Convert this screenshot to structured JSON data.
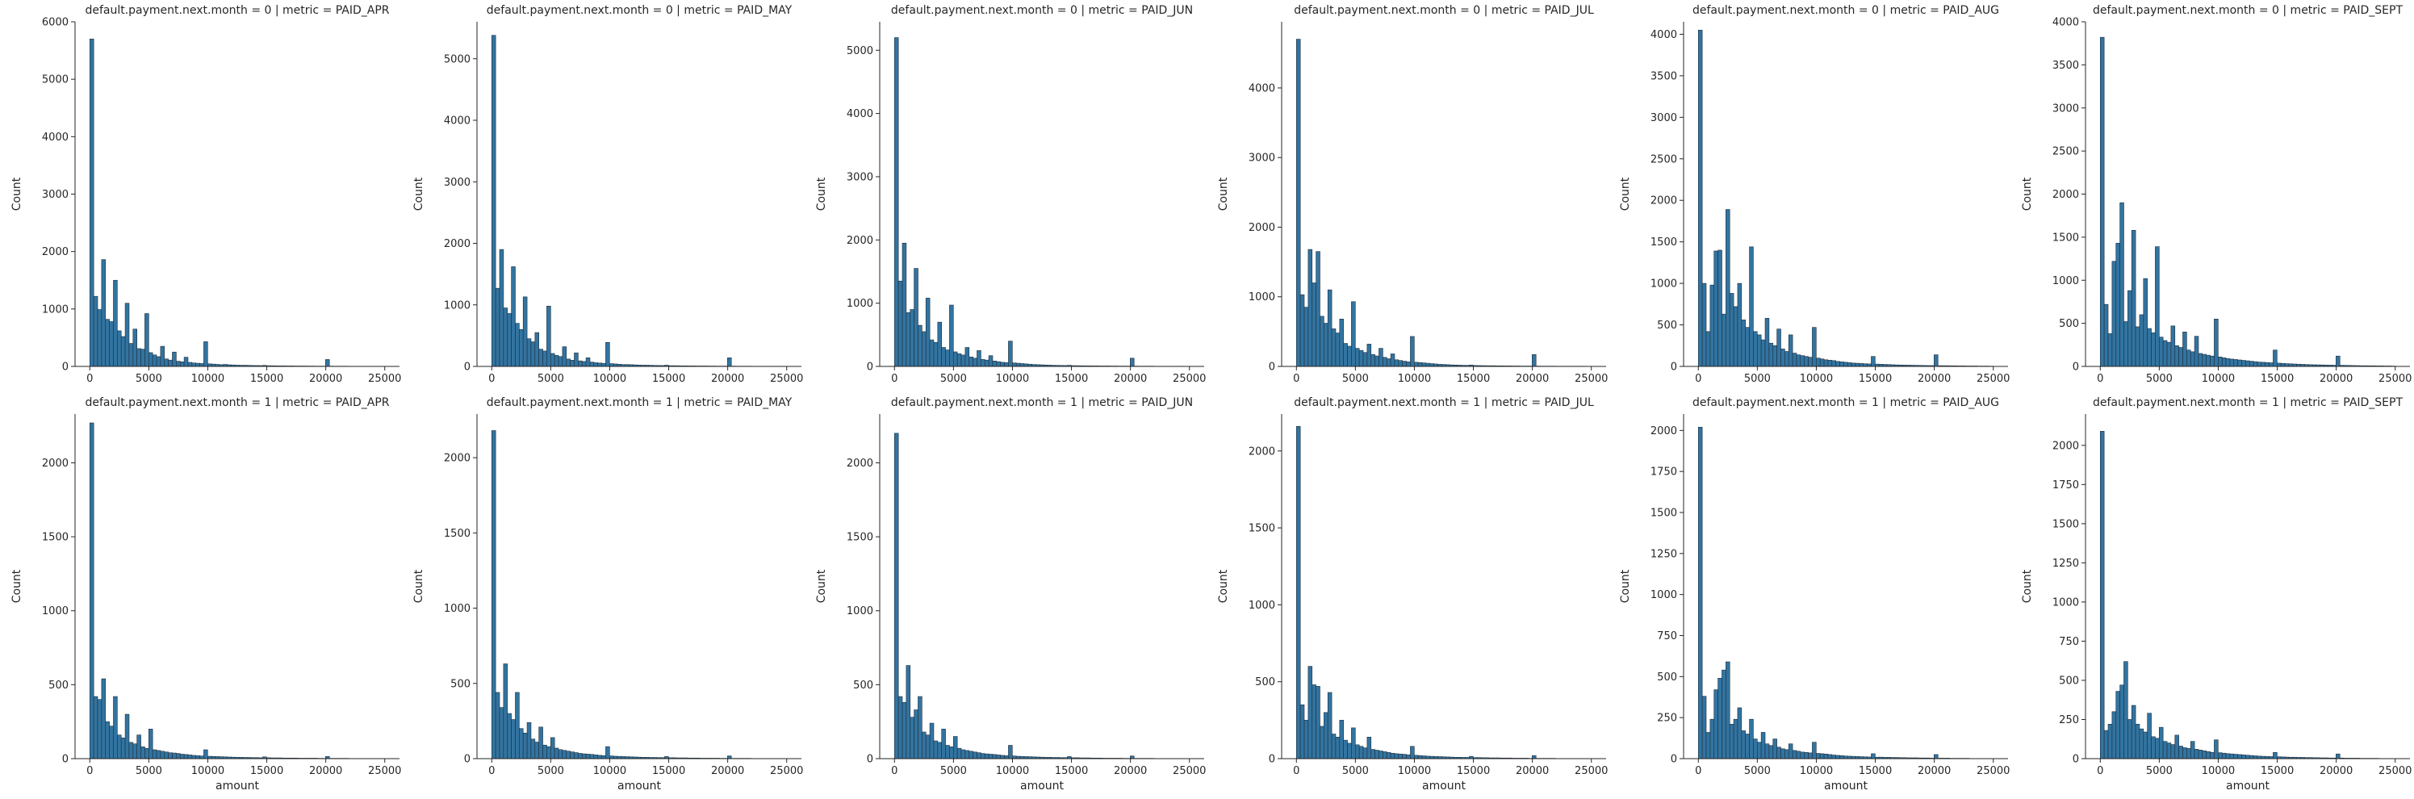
{
  "chart_data": {
    "type": "bar",
    "kind": "histogram facet grid",
    "bar_color": "#3274a1",
    "bar_edge_color": "#1f2d3a",
    "xlabel": "amount",
    "ylabel": "Count",
    "xlim": [
      -1250,
      26250
    ],
    "xticks": [
      0,
      5000,
      10000,
      15000,
      20000,
      25000
    ],
    "xtick_labels": [
      "0",
      "5000",
      "10000",
      "15000",
      "20000",
      "25000"
    ],
    "bin_width": 333,
    "panels": [
      {
        "title": "default.payment.next.month = 0 | metric = PAID_APR",
        "ylim": [
          0,
          6000
        ],
        "yticks": [
          0,
          1000,
          2000,
          3000,
          4000,
          5000,
          6000
        ],
        "counts": [
          5700,
          1220,
          990,
          1860,
          820,
          780,
          1500,
          620,
          520,
          1100,
          400,
          650,
          310,
          300,
          920,
          240,
          200,
          170,
          350,
          130,
          110,
          250,
          90,
          80,
          160,
          70,
          60,
          55,
          50,
          430,
          45,
          40,
          35,
          30,
          35,
          28,
          25,
          22,
          20,
          20,
          18,
          16,
          15,
          14,
          18,
          12,
          11,
          10,
          9,
          9,
          8,
          8,
          7,
          7,
          7,
          6,
          6,
          5,
          5,
          5,
          120,
          5,
          4,
          4,
          4,
          4,
          3,
          3,
          3,
          3,
          3,
          3,
          3,
          3,
          2
        ]
      },
      {
        "title": "default.payment.next.month = 0 | metric = PAID_MAY",
        "ylim": [
          0,
          5600
        ],
        "yticks": [
          0,
          1000,
          2000,
          3000,
          4000,
          5000
        ],
        "counts": [
          5380,
          1270,
          1900,
          950,
          860,
          1620,
          700,
          600,
          1130,
          450,
          400,
          550,
          280,
          250,
          980,
          210,
          180,
          160,
          320,
          120,
          100,
          220,
          90,
          80,
          140,
          70,
          60,
          55,
          50,
          390,
          45,
          40,
          35,
          30,
          30,
          28,
          25,
          22,
          20,
          20,
          18,
          16,
          15,
          14,
          20,
          12,
          11,
          10,
          9,
          9,
          8,
          8,
          7,
          7,
          7,
          6,
          6,
          5,
          5,
          5,
          140,
          5,
          4,
          4,
          4,
          4,
          3,
          3,
          3,
          3,
          3,
          3,
          3,
          3,
          2
        ]
      },
      {
        "title": "default.payment.next.month = 0 | metric = PAID_JUN",
        "ylim": [
          0,
          5450
        ],
        "yticks": [
          0,
          1000,
          2000,
          3000,
          4000,
          5000
        ],
        "counts": [
          5200,
          1350,
          1950,
          850,
          900,
          1550,
          650,
          550,
          1080,
          420,
          380,
          700,
          300,
          260,
          970,
          230,
          200,
          180,
          300,
          150,
          130,
          250,
          110,
          100,
          170,
          85,
          75,
          65,
          60,
          400,
          55,
          50,
          45,
          40,
          35,
          30,
          28,
          25,
          22,
          20,
          18,
          16,
          15,
          14,
          18,
          12,
          11,
          10,
          9,
          9,
          8,
          8,
          7,
          7,
          7,
          6,
          6,
          5,
          5,
          5,
          130,
          5,
          4,
          4,
          4,
          4,
          3,
          3,
          3,
          3,
          3,
          3,
          3,
          3,
          2
        ]
      },
      {
        "title": "default.payment.next.month = 0 | metric = PAID_JUL",
        "ylim": [
          0,
          4950
        ],
        "yticks": [
          0,
          1000,
          2000,
          3000,
          4000
        ],
        "counts": [
          4700,
          1030,
          850,
          1680,
          1200,
          1650,
          720,
          620,
          1100,
          540,
          480,
          680,
          330,
          290,
          930,
          260,
          230,
          200,
          320,
          170,
          150,
          260,
          130,
          110,
          180,
          95,
          85,
          75,
          65,
          430,
          60,
          55,
          50,
          45,
          40,
          35,
          30,
          28,
          25,
          22,
          20,
          18,
          16,
          15,
          20,
          13,
          12,
          11,
          10,
          9,
          9,
          8,
          8,
          7,
          7,
          6,
          6,
          5,
          5,
          5,
          170,
          5,
          4,
          4,
          4,
          4,
          3,
          3,
          3,
          3,
          3,
          3,
          3,
          3,
          2
        ]
      },
      {
        "title": "default.payment.next.month = 0 | metric = PAID_AUG",
        "ylim": [
          0,
          4150
        ],
        "yticks": [
          0,
          500,
          1000,
          1500,
          2000,
          2500,
          3000,
          3500,
          4000
        ],
        "counts": [
          4050,
          1000,
          420,
          980,
          1390,
          1400,
          630,
          1890,
          880,
          720,
          1000,
          560,
          470,
          1440,
          420,
          380,
          320,
          580,
          280,
          250,
          450,
          210,
          180,
          380,
          160,
          140,
          130,
          120,
          110,
          470,
          100,
          90,
          80,
          75,
          70,
          60,
          55,
          50,
          45,
          40,
          38,
          35,
          32,
          30,
          120,
          28,
          26,
          24,
          22,
          20,
          18,
          17,
          16,
          15,
          14,
          13,
          12,
          11,
          10,
          10,
          140,
          9,
          8,
          8,
          7,
          7,
          6,
          6,
          5,
          5,
          5,
          4,
          4,
          4,
          3
        ]
      },
      {
        "title": "default.payment.next.month = 0 | metric = PAID_SEPT",
        "ylim": [
          0,
          4000
        ],
        "yticks": [
          0,
          500,
          1000,
          1500,
          2000,
          2500,
          3000,
          3500,
          4000
        ],
        "counts": [
          3820,
          720,
          380,
          1220,
          1430,
          1900,
          520,
          880,
          1580,
          460,
          600,
          1020,
          440,
          390,
          1390,
          340,
          300,
          280,
          470,
          240,
          220,
          400,
          190,
          170,
          350,
          150,
          140,
          130,
          120,
          550,
          110,
          100,
          90,
          85,
          80,
          75,
          70,
          65,
          60,
          55,
          50,
          48,
          45,
          42,
          190,
          38,
          35,
          32,
          30,
          28,
          26,
          24,
          22,
          20,
          19,
          18,
          17,
          16,
          15,
          14,
          120,
          13,
          12,
          11,
          10,
          9,
          8,
          8,
          7,
          7,
          6,
          6,
          5,
          5,
          4
        ]
      },
      {
        "title": "default.payment.next.month = 1 | metric = PAID_APR",
        "ylim": [
          0,
          2330
        ],
        "yticks": [
          0,
          500,
          1000,
          1500,
          2000
        ],
        "counts": [
          2270,
          420,
          400,
          540,
          250,
          220,
          420,
          160,
          140,
          300,
          110,
          100,
          160,
          80,
          70,
          200,
          60,
          55,
          50,
          45,
          40,
          38,
          35,
          30,
          28,
          25,
          22,
          20,
          18,
          60,
          16,
          15,
          14,
          13,
          12,
          11,
          10,
          9,
          9,
          8,
          8,
          7,
          7,
          6,
          12,
          6,
          5,
          5,
          5,
          4,
          4,
          4,
          4,
          3,
          3,
          3,
          3,
          3,
          2,
          2,
          15,
          2,
          2,
          2,
          2,
          2,
          1,
          1,
          1,
          1,
          1,
          1,
          1,
          1,
          1
        ]
      },
      {
        "title": "default.payment.next.month = 1 | metric = PAID_MAY",
        "ylim": [
          0,
          2290
        ],
        "yticks": [
          0,
          500,
          1000,
          1500,
          2000
        ],
        "counts": [
          2180,
          440,
          340,
          630,
          300,
          260,
          440,
          200,
          170,
          240,
          130,
          110,
          210,
          90,
          80,
          140,
          70,
          60,
          55,
          50,
          45,
          40,
          35,
          32,
          30,
          28,
          25,
          22,
          20,
          80,
          18,
          16,
          15,
          14,
          13,
          12,
          11,
          10,
          9,
          9,
          8,
          8,
          7,
          7,
          14,
          6,
          6,
          5,
          5,
          5,
          4,
          4,
          4,
          3,
          3,
          3,
          3,
          3,
          2,
          2,
          18,
          2,
          2,
          2,
          2,
          2,
          1,
          1,
          1,
          1,
          1,
          1,
          1,
          1,
          1
        ]
      },
      {
        "title": "default.payment.next.month = 1 | metric = PAID_JUN",
        "ylim": [
          0,
          2330
        ],
        "yticks": [
          0,
          500,
          1000,
          1500,
          2000
        ],
        "counts": [
          2200,
          420,
          380,
          630,
          280,
          330,
          420,
          180,
          160,
          240,
          120,
          110,
          200,
          90,
          80,
          150,
          70,
          60,
          55,
          50,
          45,
          40,
          35,
          32,
          30,
          28,
          25,
          22,
          20,
          90,
          18,
          16,
          15,
          14,
          13,
          12,
          11,
          10,
          9,
          9,
          8,
          8,
          7,
          7,
          14,
          6,
          6,
          5,
          5,
          5,
          4,
          4,
          4,
          3,
          3,
          3,
          3,
          3,
          2,
          2,
          18,
          2,
          2,
          2,
          2,
          2,
          1,
          1,
          1,
          1,
          1,
          1,
          1,
          1,
          1
        ]
      },
      {
        "title": "default.payment.next.month = 1 | metric = PAID_JUL",
        "ylim": [
          0,
          2240
        ],
        "yticks": [
          0,
          500,
          1000,
          1500,
          2000
        ],
        "counts": [
          2160,
          350,
          250,
          600,
          480,
          470,
          210,
          300,
          430,
          160,
          140,
          250,
          120,
          100,
          200,
          90,
          80,
          70,
          140,
          60,
          55,
          50,
          45,
          40,
          35,
          32,
          30,
          28,
          25,
          80,
          22,
          20,
          18,
          16,
          15,
          14,
          13,
          12,
          11,
          10,
          9,
          9,
          8,
          8,
          15,
          7,
          7,
          6,
          6,
          5,
          5,
          5,
          4,
          4,
          4,
          3,
          3,
          3,
          3,
          2,
          20,
          2,
          2,
          2,
          2,
          2,
          1,
          1,
          1,
          1,
          1,
          1,
          1,
          1,
          1
        ]
      },
      {
        "title": "default.payment.next.month = 1 | metric = PAID_AUG",
        "ylim": [
          0,
          2100
        ],
        "yticks": [
          0,
          250,
          500,
          750,
          1000,
          1250,
          1500,
          1750,
          2000
        ],
        "counts": [
          2020,
          380,
          160,
          240,
          420,
          490,
          540,
          590,
          210,
          240,
          310,
          170,
          150,
          240,
          120,
          100,
          160,
          90,
          80,
          120,
          70,
          60,
          55,
          90,
          50,
          45,
          40,
          38,
          35,
          100,
          32,
          30,
          28,
          25,
          22,
          20,
          18,
          16,
          15,
          14,
          13,
          12,
          11,
          10,
          30,
          9,
          9,
          8,
          8,
          7,
          7,
          6,
          6,
          5,
          5,
          5,
          4,
          4,
          4,
          3,
          25,
          3,
          3,
          3,
          2,
          2,
          2,
          2,
          2,
          1,
          1,
          1,
          1,
          1,
          1
        ]
      },
      {
        "title": "default.payment.next.month = 1 | metric = PAID_SEPT",
        "ylim": [
          0,
          2200
        ],
        "yticks": [
          0,
          250,
          500,
          750,
          1000,
          1250,
          1500,
          1750,
          2000
        ],
        "counts": [
          2090,
          180,
          220,
          300,
          430,
          470,
          620,
          250,
          340,
          220,
          190,
          170,
          290,
          140,
          130,
          200,
          110,
          100,
          90,
          150,
          80,
          70,
          65,
          110,
          60,
          55,
          50,
          45,
          40,
          120,
          38,
          35,
          32,
          30,
          28,
          26,
          24,
          22,
          20,
          18,
          16,
          15,
          14,
          13,
          40,
          12,
          11,
          10,
          9,
          9,
          8,
          8,
          7,
          7,
          6,
          6,
          5,
          5,
          4,
          4,
          30,
          4,
          3,
          3,
          3,
          3,
          2,
          2,
          2,
          2,
          2,
          1,
          1,
          1,
          1
        ]
      }
    ]
  }
}
